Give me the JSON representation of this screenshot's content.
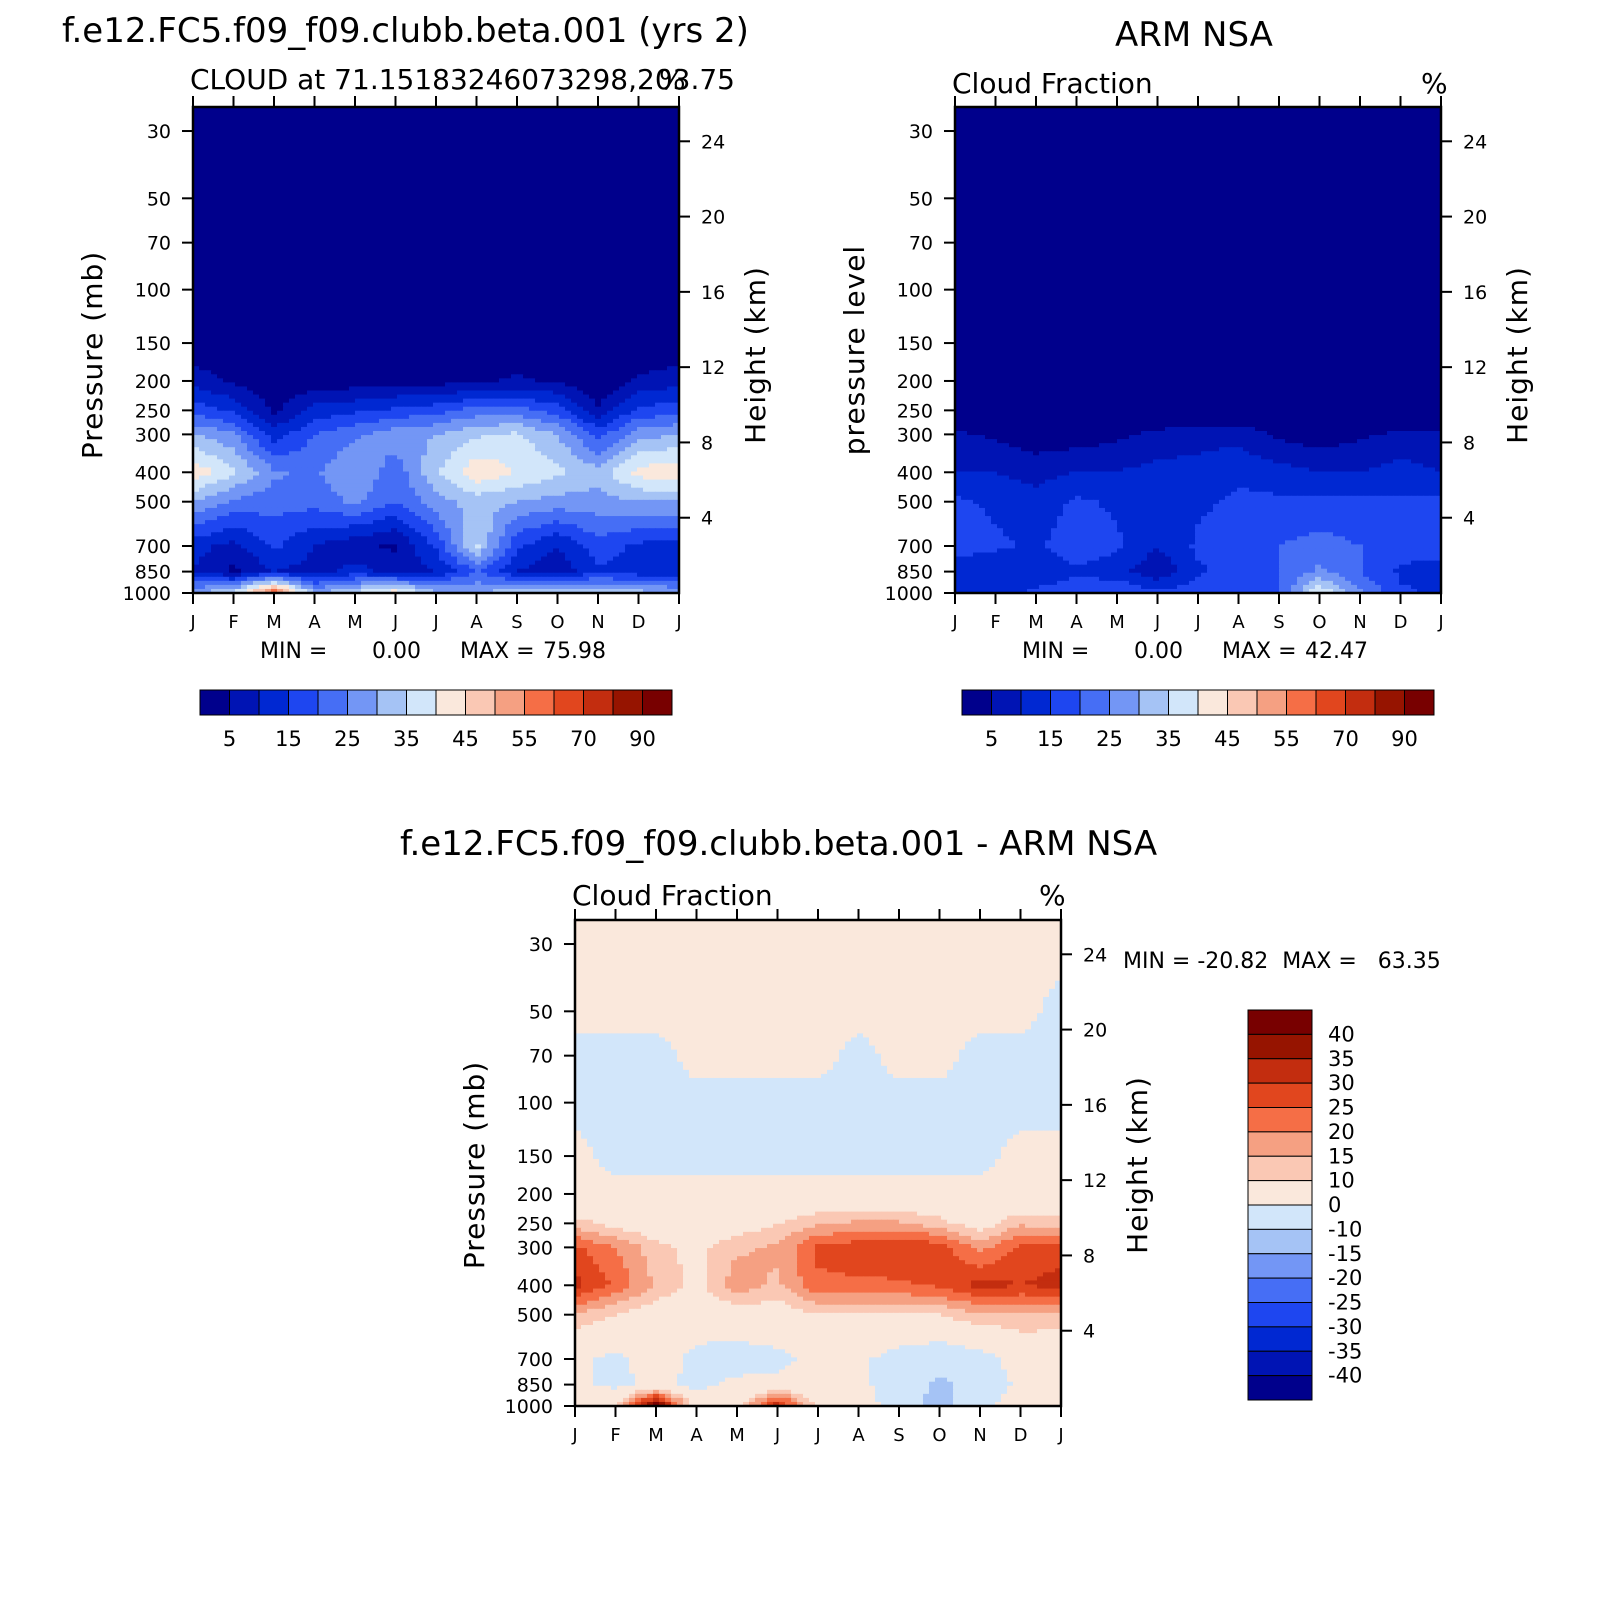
{
  "colors": {
    "seq": [
      "#00008c",
      "#0014b4",
      "#0028d2",
      "#1e46f0",
      "#466ef5",
      "#7396f5",
      "#a5c3f5",
      "#d2e6fa",
      "#fae8dc",
      "#fac8b4",
      "#f5a082",
      "#f56e46",
      "#e1461e",
      "#c32d0f",
      "#961400",
      "#780000"
    ],
    "div": [
      "#00008c",
      "#0014b4",
      "#0028d2",
      "#1e46f0",
      "#466ef5",
      "#7396f5",
      "#a5c3f5",
      "#d2e6fa",
      "#fae8dc",
      "#fac8b4",
      "#f5a082",
      "#f56e46",
      "#e1461e",
      "#c32d0f",
      "#961400",
      "#780000"
    ]
  },
  "panels": {
    "model": {
      "title": "f.e12.FC5.f09_f09.clubb.beta.001 (yrs 2)",
      "subtitle_left": "CLOUD at 71.15183246073298,203.75",
      "unit": "%",
      "ylabel_left": "Pressure (mb)",
      "ylabel_right": "Height (km)",
      "min_label": "MIN =",
      "min_value": "0.00",
      "max_label": "MAX =",
      "max_value": "75.98"
    },
    "obs": {
      "title": "ARM NSA",
      "subtitle_left": "Cloud Fraction",
      "unit": "%",
      "ylabel_left": "pressure level",
      "ylabel_right": "Height (km)",
      "min_label": "MIN =",
      "min_value": "0.00",
      "max_label": "MAX =",
      "max_value": "42.47"
    },
    "diff": {
      "title": "f.e12.FC5.f09_f09.clubb.beta.001 - ARM NSA",
      "subtitle_left": "Cloud Fraction",
      "unit": "%",
      "ylabel_left": "Pressure (mb)",
      "ylabel_right": "Height (km)",
      "minmax_text": "MIN = -20.82  MAX =   63.35"
    }
  },
  "chart_data": [
    {
      "id": "model",
      "type": "heatmap",
      "title": "f.e12.FC5.f09_f09.clubb.beta.001 (yrs 2)",
      "subtitle": "CLOUD at 71.15183246073298,203.75",
      "x": [
        "J",
        "F",
        "M",
        "A",
        "M",
        "J",
        "J",
        "A",
        "S",
        "O",
        "N",
        "D",
        "J"
      ],
      "x_ticks": [
        "J",
        "F",
        "M",
        "A",
        "M",
        "J",
        "J",
        "A",
        "S",
        "O",
        "N",
        "D",
        "J"
      ],
      "y_pressure_ticks": [
        "30",
        "50",
        "70",
        "100",
        "150",
        "200",
        "250",
        "300",
        "400",
        "500",
        "700",
        "850",
        "1000"
      ],
      "y_height_ticks": [
        "4",
        "8",
        "12",
        "16",
        "20",
        "24"
      ],
      "levels_mb": [
        30,
        50,
        70,
        100,
        150,
        200,
        250,
        300,
        400,
        500,
        700,
        850,
        1000
      ],
      "z_units": "%",
      "z": [
        [
          0,
          0,
          0,
          0,
          0,
          0,
          0,
          0,
          0,
          0,
          0,
          0,
          0
        ],
        [
          0,
          0,
          0,
          0,
          0,
          0,
          0,
          0,
          0,
          0,
          0,
          0,
          0
        ],
        [
          0,
          0,
          0,
          0,
          0,
          0,
          0,
          0,
          0,
          0,
          0,
          0,
          0
        ],
        [
          0,
          0,
          0,
          0,
          0,
          0,
          0,
          0,
          0,
          0,
          0,
          0,
          0
        ],
        [
          0,
          0,
          0,
          0,
          0,
          0,
          0,
          0,
          0,
          0,
          0,
          0,
          0
        ],
        [
          8,
          4,
          0,
          2,
          2,
          3,
          3,
          4,
          6,
          4,
          0,
          6,
          8
        ],
        [
          18,
          14,
          4,
          12,
          14,
          16,
          18,
          22,
          22,
          18,
          6,
          16,
          18
        ],
        [
          30,
          26,
          12,
          20,
          24,
          28,
          30,
          34,
          36,
          30,
          18,
          28,
          30
        ],
        [
          44,
          36,
          26,
          24,
          30,
          22,
          34,
          44,
          40,
          36,
          32,
          42,
          44
        ],
        [
          30,
          24,
          22,
          22,
          26,
          20,
          28,
          32,
          30,
          28,
          28,
          30,
          30
        ],
        [
          12,
          8,
          16,
          10,
          6,
          4,
          16,
          36,
          16,
          10,
          18,
          14,
          12
        ],
        [
          10,
          4,
          10,
          8,
          12,
          8,
          10,
          20,
          10,
          6,
          14,
          12,
          10
        ],
        [
          30,
          36,
          62,
          30,
          36,
          44,
          32,
          30,
          34,
          36,
          34,
          32,
          30
        ]
      ],
      "colorbar_labels": [
        "5",
        "15",
        "25",
        "35",
        "45",
        "55",
        "70",
        "90"
      ],
      "colorbar_levels": [
        5,
        10,
        15,
        20,
        25,
        30,
        35,
        40,
        45,
        50,
        55,
        60,
        70,
        80,
        90
      ],
      "min": 0.0,
      "max": 75.98
    },
    {
      "id": "obs",
      "type": "heatmap",
      "title": "ARM NSA",
      "subtitle": "Cloud Fraction",
      "x": [
        "J",
        "F",
        "M",
        "A",
        "M",
        "J",
        "J",
        "A",
        "S",
        "O",
        "N",
        "D",
        "J"
      ],
      "x_ticks": [
        "J",
        "F",
        "M",
        "A",
        "M",
        "J",
        "J",
        "A",
        "S",
        "O",
        "N",
        "D",
        "J"
      ],
      "y_pressure_ticks": [
        "30",
        "50",
        "70",
        "100",
        "150",
        "200",
        "250",
        "300",
        "400",
        "500",
        "700",
        "850",
        "1000"
      ],
      "y_height_ticks": [
        "4",
        "8",
        "12",
        "16",
        "20",
        "24"
      ],
      "levels_mb": [
        30,
        50,
        70,
        100,
        150,
        200,
        250,
        300,
        400,
        500,
        700,
        850,
        1000
      ],
      "z_units": "%",
      "z": [
        [
          0,
          0,
          0,
          0,
          0,
          0,
          0,
          0,
          0,
          0,
          0,
          0,
          0
        ],
        [
          0,
          0,
          0,
          0,
          0,
          0,
          0,
          0,
          0,
          0,
          0,
          0,
          0
        ],
        [
          0,
          0,
          0,
          0,
          0,
          0,
          0,
          0,
          0,
          0,
          0,
          0,
          0
        ],
        [
          0,
          0,
          0,
          0,
          0,
          0,
          0,
          0,
          0,
          0,
          0,
          0,
          0
        ],
        [
          0,
          0,
          0,
          0,
          0,
          0,
          0,
          0,
          0,
          0,
          0,
          0,
          0
        ],
        [
          0,
          0,
          0,
          0,
          0,
          0,
          0,
          0,
          0,
          0,
          0,
          0,
          0
        ],
        [
          0,
          0,
          0,
          0,
          0,
          0,
          0,
          0,
          0,
          0,
          0,
          0,
          0
        ],
        [
          6,
          4,
          2,
          2,
          4,
          6,
          8,
          8,
          4,
          2,
          4,
          6,
          6
        ],
        [
          10,
          10,
          8,
          10,
          10,
          12,
          12,
          14,
          12,
          10,
          10,
          12,
          10
        ],
        [
          16,
          14,
          12,
          16,
          14,
          12,
          14,
          16,
          16,
          16,
          16,
          16,
          16
        ],
        [
          18,
          16,
          14,
          18,
          16,
          10,
          16,
          18,
          20,
          22,
          20,
          18,
          18
        ],
        [
          12,
          10,
          12,
          14,
          12,
          6,
          14,
          18,
          20,
          26,
          20,
          14,
          12
        ],
        [
          14,
          12,
          16,
          18,
          20,
          16,
          18,
          18,
          20,
          40,
          26,
          16,
          14
        ]
      ],
      "colorbar_labels": [
        "5",
        "15",
        "25",
        "35",
        "45",
        "55",
        "70",
        "90"
      ],
      "colorbar_levels": [
        5,
        10,
        15,
        20,
        25,
        30,
        35,
        40,
        45,
        50,
        55,
        60,
        70,
        80,
        90
      ],
      "min": 0.0,
      "max": 42.47
    },
    {
      "id": "diff",
      "type": "heatmap",
      "title": "f.e12.FC5.f09_f09.clubb.beta.001 - ARM NSA",
      "subtitle": "Cloud Fraction",
      "x": [
        "J",
        "F",
        "M",
        "A",
        "M",
        "J",
        "J",
        "A",
        "S",
        "O",
        "N",
        "D",
        "J"
      ],
      "x_ticks": [
        "J",
        "F",
        "M",
        "A",
        "M",
        "J",
        "J",
        "A",
        "S",
        "O",
        "N",
        "D",
        "J"
      ],
      "y_pressure_ticks": [
        "30",
        "50",
        "70",
        "100",
        "150",
        "200",
        "250",
        "300",
        "400",
        "500",
        "700",
        "850",
        "1000"
      ],
      "y_height_ticks": [
        "4",
        "8",
        "12",
        "16",
        "20",
        "24"
      ],
      "levels_mb": [
        30,
        50,
        70,
        100,
        150,
        200,
        250,
        300,
        400,
        500,
        700,
        850,
        1000
      ],
      "z_units": "%",
      "z": [
        [
          2,
          2,
          2,
          2,
          2,
          2,
          2,
          2,
          2,
          2,
          2,
          2,
          2
        ],
        [
          2,
          2,
          2,
          2,
          2,
          2,
          2,
          2,
          2,
          2,
          2,
          2,
          -2
        ],
        [
          -2,
          -2,
          -2,
          2,
          2,
          2,
          2,
          -2,
          2,
          2,
          -2,
          -2,
          -2
        ],
        [
          -2,
          -2,
          -2,
          -2,
          -2,
          -2,
          -2,
          -2,
          -2,
          -2,
          -2,
          -2,
          -2
        ],
        [
          2,
          -2,
          -2,
          -2,
          -2,
          -2,
          -2,
          -2,
          -2,
          -2,
          -2,
          2,
          2
        ],
        [
          2,
          2,
          2,
          2,
          2,
          2,
          2,
          2,
          2,
          2,
          2,
          2,
          2
        ],
        [
          12,
          8,
          4,
          2,
          6,
          10,
          14,
          16,
          16,
          12,
          6,
          14,
          12
        ],
        [
          26,
          20,
          12,
          8,
          14,
          16,
          26,
          28,
          30,
          28,
          18,
          26,
          28
        ],
        [
          32,
          24,
          14,
          8,
          18,
          14,
          24,
          24,
          24,
          26,
          32,
          30,
          32
        ],
        [
          14,
          10,
          6,
          4,
          6,
          6,
          10,
          10,
          10,
          10,
          14,
          14,
          14
        ],
        [
          2,
          -2,
          4,
          -2,
          -4,
          -2,
          2,
          2,
          -4,
          -6,
          -4,
          4,
          2
        ],
        [
          2,
          -2,
          2,
          -2,
          2,
          2,
          2,
          2,
          -4,
          -12,
          -6,
          2,
          2
        ],
        [
          6,
          10,
          46,
          4,
          6,
          34,
          8,
          4,
          -4,
          -14,
          -2,
          4,
          6
        ]
      ],
      "colorbar_labels": [
        "40",
        "35",
        "30",
        "25",
        "20",
        "15",
        "10",
        "0",
        "-10",
        "-15",
        "-20",
        "-25",
        "-30",
        "-35",
        "-40"
      ],
      "colorbar_levels": [
        -40,
        -35,
        -30,
        -25,
        -20,
        -15,
        -10,
        0,
        10,
        15,
        20,
        25,
        30,
        35,
        40
      ],
      "min": -20.82,
      "max": 63.35
    }
  ]
}
